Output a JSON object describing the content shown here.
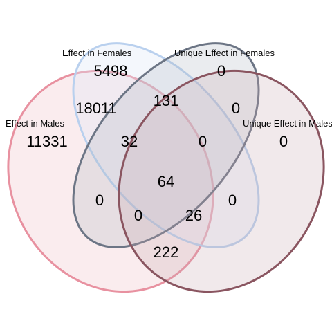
{
  "sets": [
    {
      "key": "A",
      "label": "Effect in Males",
      "fill": "#e8a0a8",
      "stroke": "#e891a0"
    },
    {
      "key": "B",
      "label": "Effect in Females",
      "fill": "#dfe9f7",
      "stroke": "#b9d0ee"
    },
    {
      "key": "C",
      "label": "Unique Effect in Females",
      "fill": "#aab2c0",
      "stroke": "#6c7585"
    },
    {
      "key": "D",
      "label": "Unique Effect in Males",
      "fill": "#c8a8ae",
      "stroke": "#8a5560"
    }
  ],
  "regions": {
    "A": "11331",
    "B": "5498",
    "C": "0",
    "D": "0",
    "AB": "18011",
    "BC": "131",
    "CD": "0",
    "ABC": "32",
    "BCD": "0",
    "ABCD": "64",
    "AC": "0",
    "ACD": "0",
    "ABD": "26",
    "AD": "222",
    "BD": "0"
  }
}
